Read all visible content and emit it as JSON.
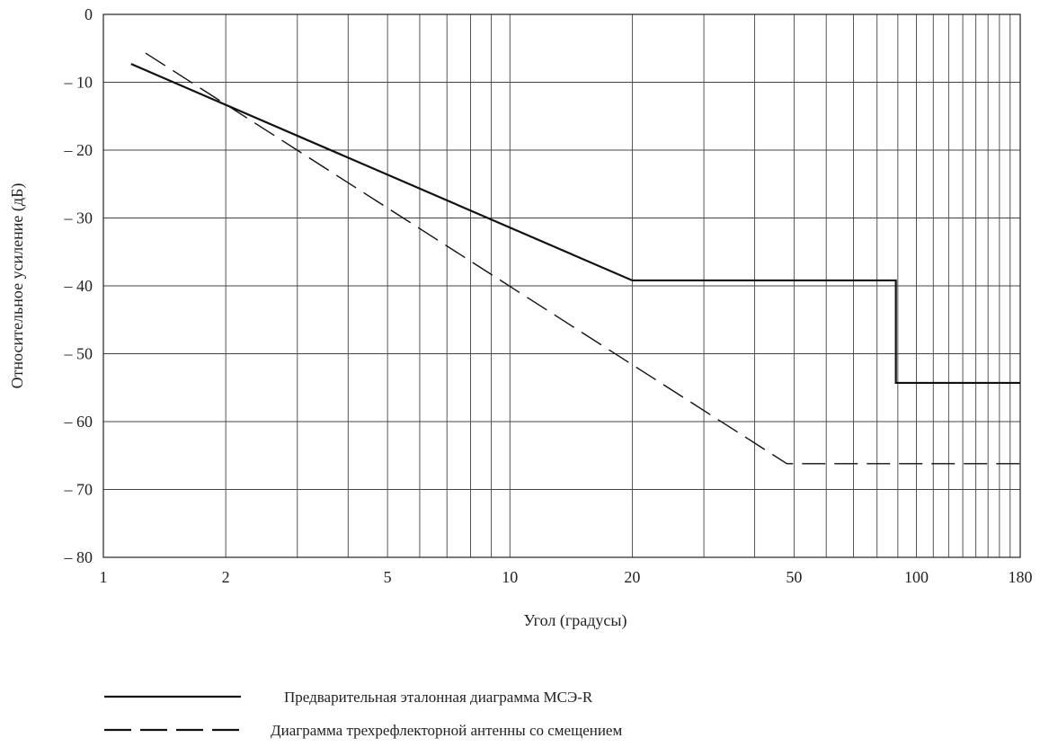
{
  "chart_data": {
    "type": "line",
    "title": "",
    "xlabel": "Угол (градусы)",
    "ylabel": "Относительное усиление (дБ)",
    "x_scale": "log",
    "xlim": [
      1,
      180
    ],
    "ylim": [
      -80,
      0
    ],
    "x_ticks": [
      1,
      2,
      5,
      10,
      20,
      50,
      100,
      180
    ],
    "x_tick_labels": [
      "1",
      "2",
      "5",
      "10",
      "20",
      "50",
      "100",
      "180"
    ],
    "y_ticks": [
      0,
      -10,
      -20,
      -30,
      -40,
      -50,
      -60,
      -70,
      -80
    ],
    "y_tick_labels": [
      "0",
      "– 10",
      "– 20",
      "– 30",
      "– 40",
      "– 50",
      "– 60",
      "– 70",
      "– 80"
    ],
    "grid": true,
    "legend_position": "bottom",
    "series": [
      {
        "name": "Предварительная эталонная диаграмма МСЭ-R",
        "style": "solid",
        "x": [
          1.17,
          20,
          89,
          89,
          180
        ],
        "y": [
          -7.3,
          -39.2,
          -39.2,
          -54.3,
          -54.3
        ]
      },
      {
        "name": "Диаграмма трехрефлекторной антенны со смещением",
        "style": "dashed",
        "x": [
          1.27,
          48,
          180
        ],
        "y": [
          -5.7,
          -66.2,
          -66.2
        ]
      }
    ]
  }
}
